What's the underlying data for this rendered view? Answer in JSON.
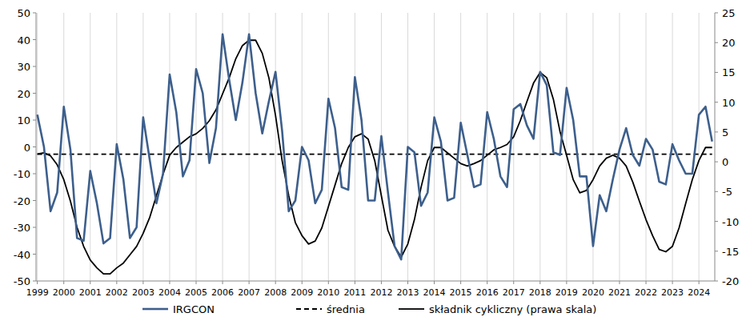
{
  "chart_data": {
    "type": "line",
    "x": [
      1999,
      1999.25,
      1999.5,
      1999.75,
      2000,
      2000.25,
      2000.5,
      2000.75,
      2001,
      2001.25,
      2001.5,
      2001.75,
      2002,
      2002.25,
      2002.5,
      2002.75,
      2003,
      2003.25,
      2003.5,
      2003.75,
      2004,
      2004.25,
      2004.5,
      2004.75,
      2005,
      2005.25,
      2005.5,
      2005.75,
      2006,
      2006.25,
      2006.5,
      2006.75,
      2007,
      2007.25,
      2007.5,
      2007.75,
      2008,
      2008.25,
      2008.5,
      2008.75,
      2009,
      2009.25,
      2009.5,
      2009.75,
      2010,
      2010.25,
      2010.5,
      2010.75,
      2011,
      2011.25,
      2011.5,
      2011.75,
      2012,
      2012.25,
      2012.5,
      2012.75,
      2013,
      2013.25,
      2013.5,
      2013.75,
      2014,
      2014.25,
      2014.5,
      2014.75,
      2015,
      2015.25,
      2015.5,
      2015.75,
      2016,
      2016.25,
      2016.5,
      2016.75,
      2017,
      2017.25,
      2017.5,
      2017.75,
      2018,
      2018.25,
      2018.5,
      2018.75,
      2019,
      2019.25,
      2019.5,
      2019.75,
      2020,
      2020.25,
      2020.5,
      2020.75,
      2021,
      2021.25,
      2021.5,
      2021.75,
      2022,
      2022.25,
      2022.5,
      2022.75,
      2023,
      2023.25,
      2023.5,
      2023.75,
      2024,
      2024.25,
      2024.5
    ],
    "series": [
      {
        "name": "IRGCON",
        "color": "#3d5f8c",
        "line_style": "solid",
        "values": [
          12,
          0,
          -24,
          -17,
          15,
          -1,
          -34,
          -35,
          -9,
          -21,
          -36,
          -34,
          1,
          -12,
          -34,
          -30,
          11,
          -5,
          -21,
          -10,
          27,
          13,
          -11,
          -5,
          29,
          20,
          -6,
          7,
          42,
          25,
          10,
          24,
          42,
          20,
          5,
          17,
          28,
          6,
          -24,
          -20,
          0,
          -5,
          -21,
          -16,
          18,
          7,
          -15,
          -16,
          26,
          10,
          -20,
          -20,
          4,
          -17,
          -37,
          -42,
          0,
          -2,
          -22,
          -17,
          11,
          2,
          -20,
          -19,
          9,
          -3,
          -15,
          -14,
          13,
          3,
          -11,
          -15,
          14,
          16,
          8,
          3,
          28,
          23,
          -2,
          -3,
          22,
          10,
          -11,
          -11,
          -37,
          -18,
          -24,
          -12,
          -1,
          7,
          -3,
          -7,
          3,
          -1,
          -13,
          -14,
          1,
          -5,
          -10,
          -10,
          12,
          15,
          2
        ]
      },
      {
        "name": "średnia",
        "color": "#000000",
        "line_style": "dashed",
        "values": [
          -2.7,
          -2.7,
          -2.7,
          -2.7,
          -2.7,
          -2.7,
          -2.7,
          -2.7,
          -2.7,
          -2.7,
          -2.7,
          -2.7,
          -2.7,
          -2.7,
          -2.7,
          -2.7,
          -2.7,
          -2.7,
          -2.7,
          -2.7,
          -2.7,
          -2.7,
          -2.7,
          -2.7,
          -2.7,
          -2.7,
          -2.7,
          -2.7,
          -2.7,
          -2.7,
          -2.7,
          -2.7,
          -2.7,
          -2.7,
          -2.7,
          -2.7,
          -2.7,
          -2.7,
          -2.7,
          -2.7,
          -2.7,
          -2.7,
          -2.7,
          -2.7,
          -2.7,
          -2.7,
          -2.7,
          -2.7,
          -2.7,
          -2.7,
          -2.7,
          -2.7,
          -2.7,
          -2.7,
          -2.7,
          -2.7,
          -2.7,
          -2.7,
          -2.7,
          -2.7,
          -2.7,
          -2.7,
          -2.7,
          -2.7,
          -2.7,
          -2.7,
          -2.7,
          -2.7,
          -2.7,
          -2.7,
          -2.7,
          -2.7,
          -2.7,
          -2.7,
          -2.7,
          -2.7,
          -2.7,
          -2.7,
          -2.7,
          -2.7,
          -2.7,
          -2.7,
          -2.7,
          -2.7,
          -2.7,
          -2.7,
          -2.7,
          -2.7,
          -2.7,
          -2.7,
          -2.7,
          -2.7,
          -2.7,
          -2.7,
          -2.7,
          -2.7,
          -2.7,
          -2.7,
          -2.7,
          -2.7,
          -2.7,
          -2.7,
          -2.7
        ]
      },
      {
        "name": "składnik cykliczny (prawa skala)",
        "color": "#000000",
        "line_style": "solid",
        "axis": "y2",
        "values": [
          1.3,
          1.5,
          1.0,
          -0.5,
          -3,
          -6.6,
          -11,
          -14.2,
          -16.5,
          -17.8,
          -18.8,
          -18.8,
          -17.8,
          -17,
          -15.6,
          -14.2,
          -12,
          -9.3,
          -5.7,
          -2.1,
          1.1,
          2.4,
          3.3,
          4.2,
          4.7,
          5.6,
          6.9,
          8.7,
          11.4,
          14.1,
          17.3,
          19.5,
          20.4,
          20.4,
          18.2,
          14.1,
          7.8,
          0.2,
          -5.7,
          -10.2,
          -12.4,
          -13.8,
          -13.3,
          -11.1,
          -7.5,
          -3.9,
          -0.3,
          2.4,
          4.2,
          4.7,
          3.8,
          0.2,
          -5.7,
          -11.5,
          -14.2,
          -16,
          -13.8,
          -9.7,
          -4.3,
          0.2,
          2.4,
          2.4,
          1.5,
          0.6,
          -0.3,
          -0.7,
          -0.3,
          0.2,
          1.1,
          2.0,
          2.4,
          2.9,
          4.2,
          6.9,
          10.1,
          13.2,
          15,
          14.1,
          10.5,
          5.1,
          1.1,
          -3,
          -5.2,
          -4.8,
          -3,
          -0.7,
          0.6,
          1.1,
          0.6,
          -0.7,
          -3.4,
          -6.6,
          -9.7,
          -12.4,
          -14.7,
          -15.1,
          -14.2,
          -11.1,
          -7,
          -3,
          0.2,
          2.4,
          2.4
        ]
      }
    ],
    "xlim": [
      1998.95,
      2024.6
    ],
    "xticks": [
      1999,
      2000,
      2001,
      2002,
      2003,
      2004,
      2005,
      2006,
      2007,
      2008,
      2009,
      2010,
      2011,
      2012,
      2013,
      2014,
      2015,
      2016,
      2017,
      2018,
      2019,
      2020,
      2021,
      2022,
      2023,
      2024
    ],
    "ylim": [
      -50,
      50
    ],
    "yticks": [
      -50,
      -40,
      -30,
      -20,
      -10,
      0,
      10,
      20,
      30,
      40,
      50
    ],
    "y2lim": [
      -20,
      25
    ],
    "y2ticks": [
      -20,
      -15,
      -10,
      -5,
      0,
      5,
      10,
      15,
      20,
      25
    ],
    "grid": true,
    "legend": "bottom"
  }
}
